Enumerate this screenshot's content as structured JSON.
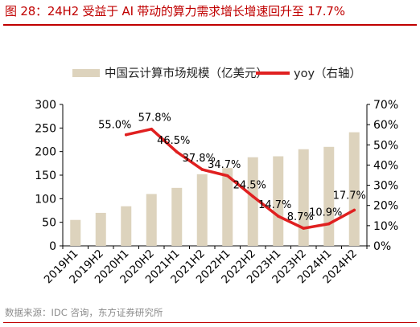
{
  "title": "图 28：24H2 受益于 AI 带动的算力需求增长增速回升至 17.7%",
  "source": "数据来源：IDC 咨询，东方证券研究所",
  "chart_data": {
    "type": "bar",
    "categories": [
      "2019H1",
      "2019H2",
      "2020H1",
      "2020H2",
      "2021H1",
      "2021H2",
      "2022H1",
      "2022H2",
      "2023H1",
      "2023H2",
      "2024H1",
      "2024H2"
    ],
    "series": [
      {
        "name": "中国云计算市场规模（亿美元）",
        "type": "bar",
        "axis": "left",
        "color": "#ddd3bd",
        "values": [
          55,
          70,
          84,
          110,
          123,
          152,
          165,
          188,
          190,
          205,
          210,
          241
        ]
      },
      {
        "name": "yoy（右轴）",
        "type": "line",
        "axis": "right",
        "color": "#e02020",
        "values": [
          null,
          null,
          55.0,
          57.8,
          46.5,
          37.8,
          34.7,
          24.5,
          14.7,
          8.7,
          10.9,
          17.7
        ],
        "labels": [
          "",
          "",
          "55.0%",
          "57.8%",
          "46.5%",
          "37.8%",
          "34.7%",
          "24.5%",
          "14.7%",
          "8.7%",
          "10.9%",
          "17.7%"
        ]
      }
    ],
    "y_left": {
      "min": 0,
      "max": 300,
      "ticks": [
        "0",
        "50",
        "100",
        "150",
        "200",
        "250",
        "300"
      ]
    },
    "y_right": {
      "min": 0,
      "max": 70,
      "ticks": [
        "0%",
        "10%",
        "20%",
        "30%",
        "40%",
        "50%",
        "60%",
        "70%"
      ]
    },
    "grid": false,
    "legend_position": "top"
  }
}
